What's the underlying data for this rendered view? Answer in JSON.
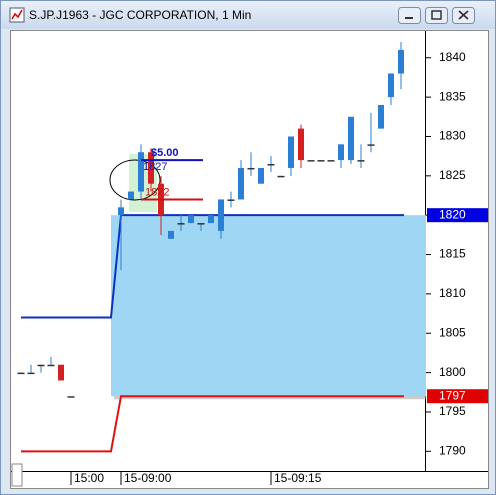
{
  "window_title": "S.JP.J1963 - JGC CORPORATION, 1 Min",
  "chart_data": {
    "type": "candlestick",
    "x": [
      0,
      1,
      2,
      3,
      4,
      5,
      10,
      11,
      12,
      13,
      14,
      15,
      16,
      17,
      18,
      19,
      20,
      21,
      22,
      23,
      24,
      25,
      26,
      27,
      28,
      29,
      30,
      31,
      32,
      33,
      34,
      35,
      36,
      37,
      38
    ],
    "open": [
      1800,
      1800,
      1801,
      1801,
      1801,
      1797,
      1820,
      1822,
      1823,
      1828,
      1824,
      1817,
      1819,
      1819,
      1819,
      1819,
      1818,
      1822,
      1822,
      1826,
      1824,
      1826.5,
      1825,
      1826,
      1831,
      1827,
      1827,
      1827,
      1827,
      1827,
      1827,
      1829,
      1831,
      1835,
      1838
    ],
    "high": [
      1800,
      1801,
      1801,
      1802,
      1801,
      1797,
      1822,
      1823,
      1829,
      1828.5,
      1825,
      1818,
      1820,
      1820,
      1819,
      1820,
      1822,
      1823,
      1827,
      1828,
      1826,
      1827.5,
      1825,
      1830,
      1831.5,
      1827,
      1827,
      1827,
      1829,
      1832.5,
      1829,
      1833,
      1834,
      1838,
      1842
    ],
    "low": [
      1800,
      1800,
      1800,
      1801,
      1799,
      1797,
      1813,
      1822,
      1822,
      1823,
      1817.5,
      1817,
      1818,
      1819,
      1818,
      1819,
      1817,
      1821,
      1822,
      1825,
      1824,
      1825.5,
      1825,
      1825,
      1826,
      1827,
      1827,
      1827,
      1826,
      1826.5,
      1826,
      1828,
      1831,
      1834,
      1836
    ],
    "close": [
      1800,
      1800,
      1801,
      1801,
      1799,
      1797,
      1821,
      1823,
      1828,
      1824,
      1820,
      1818,
      1819,
      1820,
      1819,
      1820,
      1822,
      1822,
      1826,
      1826,
      1826,
      1826.5,
      1825,
      1830,
      1827,
      1827,
      1827,
      1827,
      1829,
      1832.5,
      1827,
      1829,
      1834,
      1838,
      1841
    ],
    "up_color": "#2a7fd4",
    "down_color": "#d42020",
    "xlim": [
      -0.8,
      40.5
    ],
    "xticks": [
      {
        "value": 5,
        "label": "15:00"
      },
      {
        "value": 10,
        "label": "15-09:00"
      },
      {
        "value": 25,
        "label": "15-09:15"
      }
    ],
    "ylim": [
      1787.5,
      1843.4
    ],
    "yticks": [
      1790,
      1795,
      1800,
      1805,
      1810,
      1815,
      1820,
      1825,
      1830,
      1835,
      1840
    ],
    "price_labels": [
      {
        "value": 1820,
        "color": "#0000e0"
      },
      {
        "value": 1797,
        "color": "#e00000"
      }
    ],
    "bands": [
      {
        "color": "#1030c0",
        "x": [
          0,
          9,
          10,
          38.3
        ],
        "values": [
          1807,
          1807,
          1820,
          1820
        ]
      },
      {
        "color": "#e01010",
        "x": [
          0,
          9,
          10,
          38.3
        ],
        "values": [
          1790,
          1790,
          1797,
          1797
        ]
      }
    ],
    "order": {
      "label": "$5.00",
      "entry": 1827,
      "stop": 1822,
      "entry_color": "#1010c0",
      "stop_color": "#d01010"
    }
  }
}
